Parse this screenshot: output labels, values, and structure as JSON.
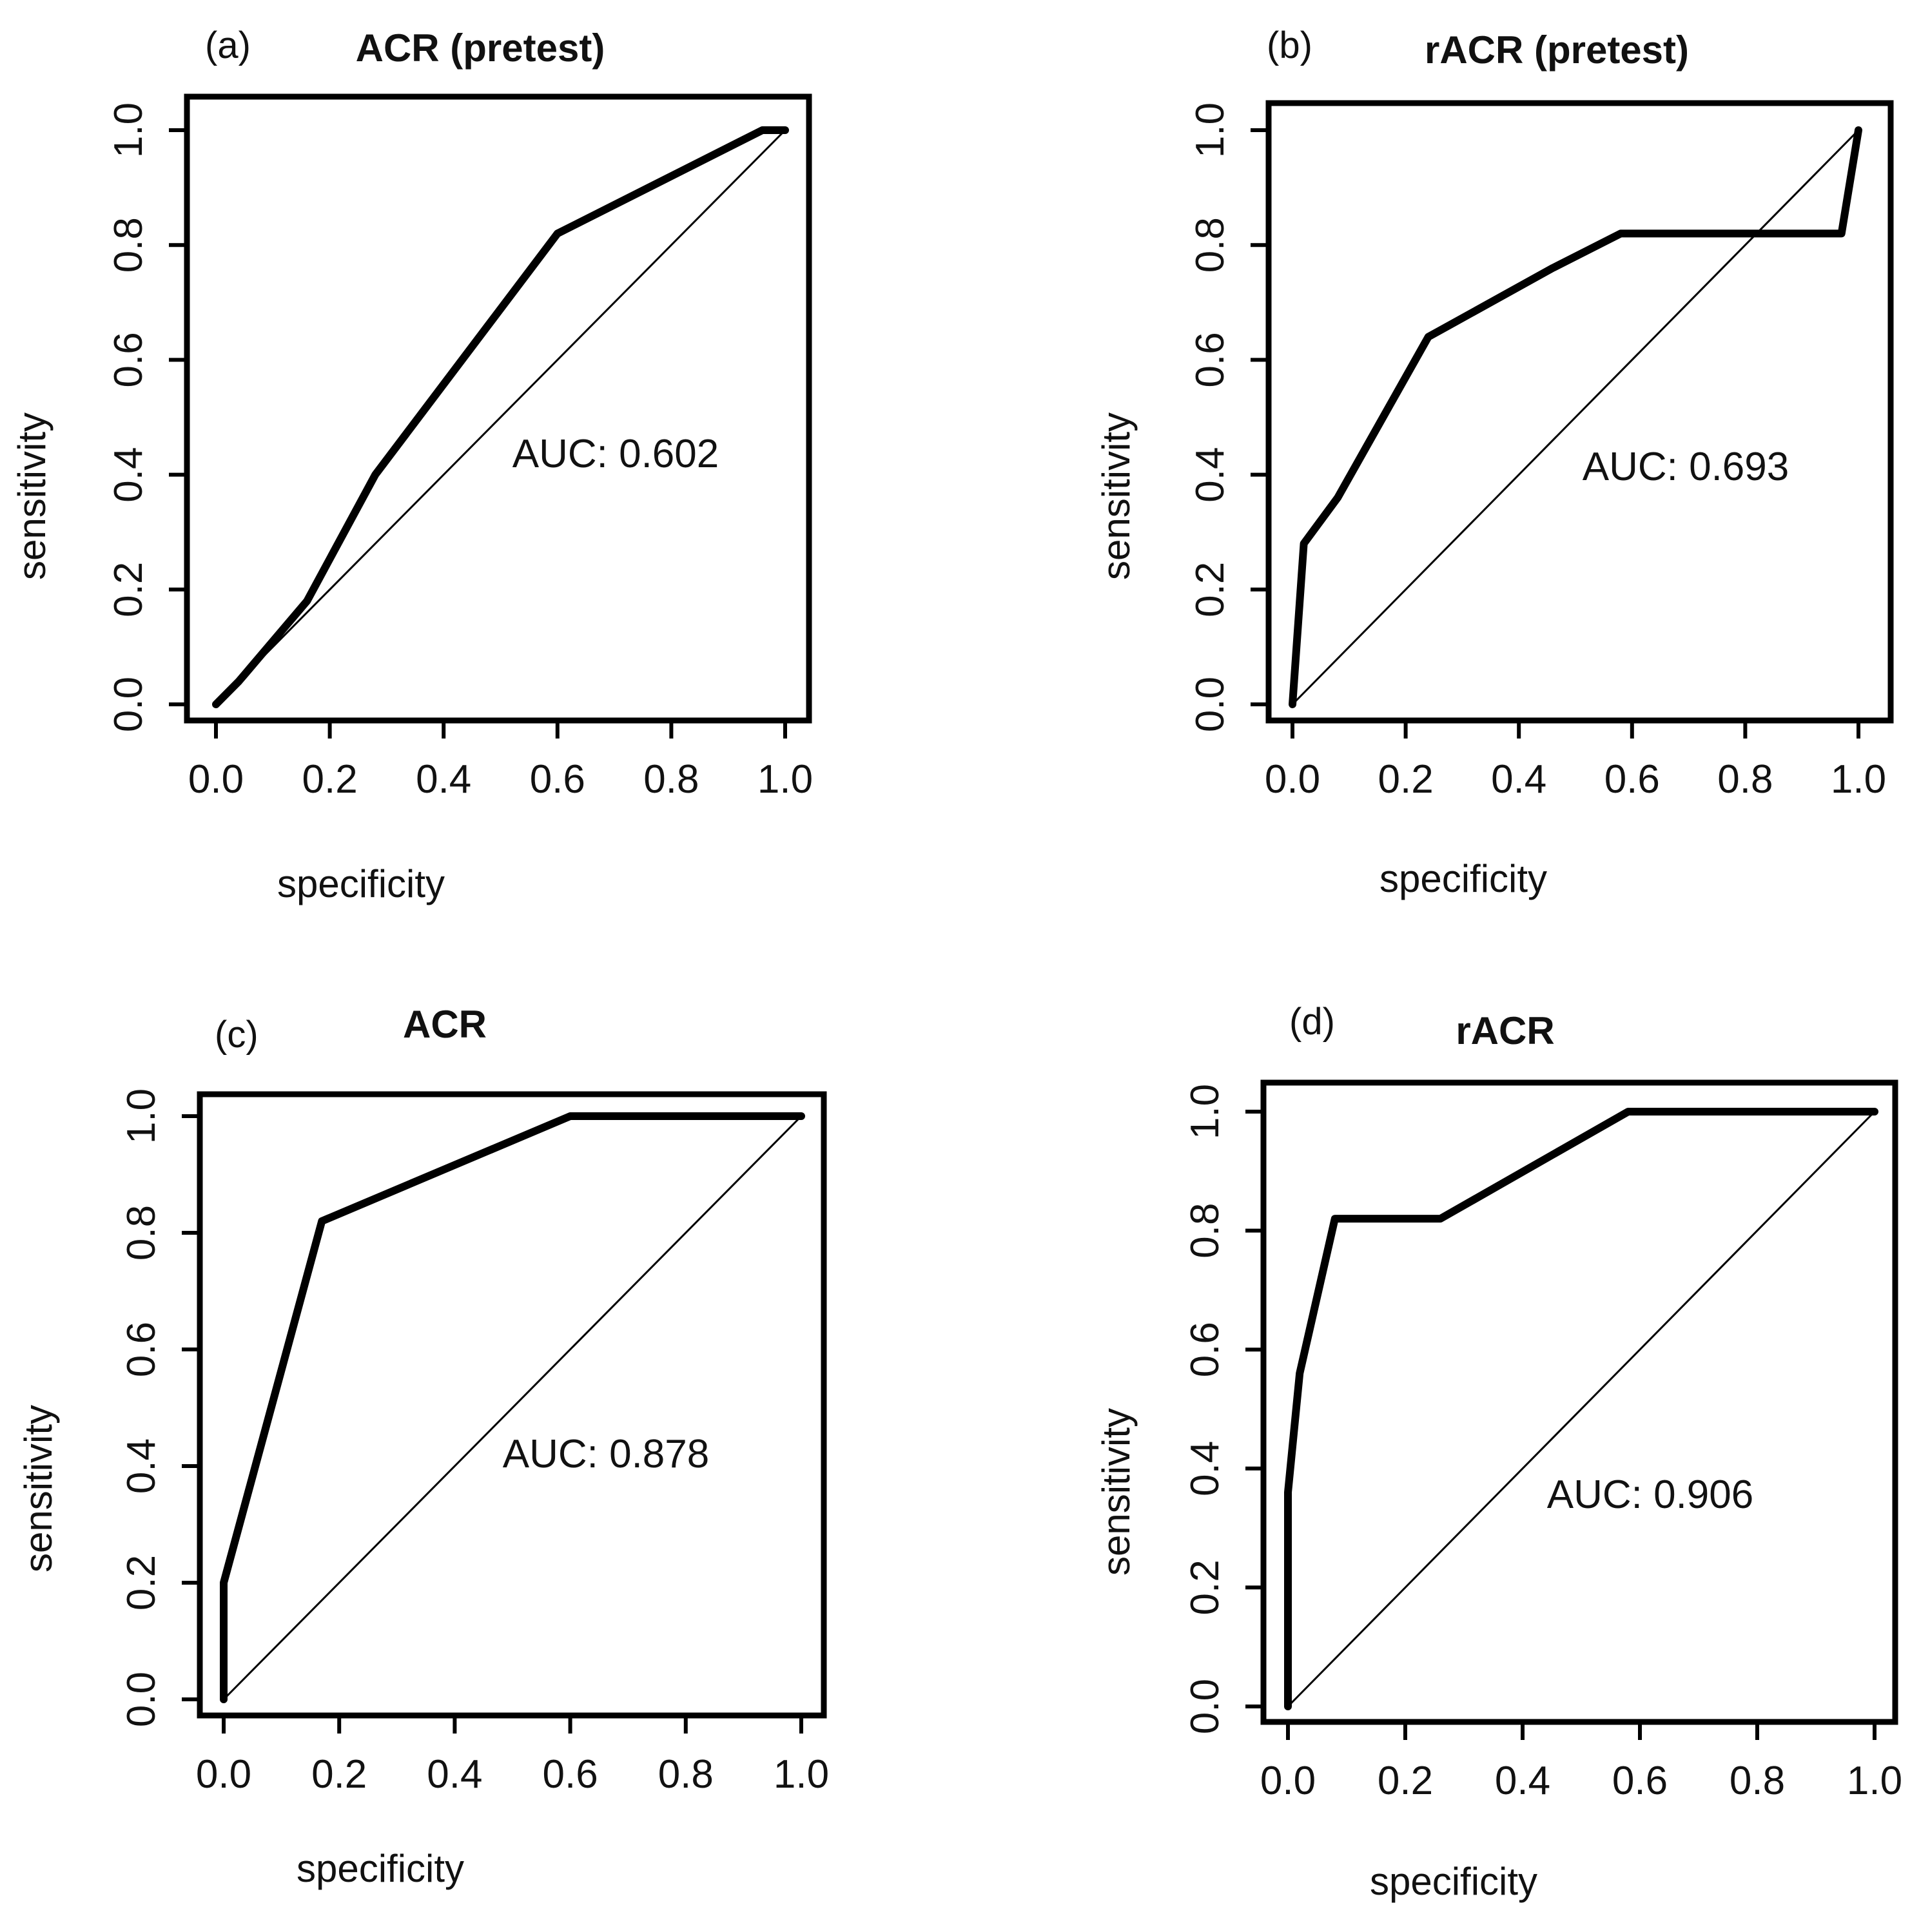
{
  "figure": {
    "xlabel": "specificity",
    "ylabel": "sensitivity",
    "ticks": [
      "0.0",
      "0.2",
      "0.4",
      "0.6",
      "0.8",
      "1.0"
    ]
  },
  "chart_data": [
    {
      "type": "line",
      "panel": "(a)",
      "title": "ACR (pretest)",
      "xlabel": "specificity",
      "ylabel": "sensitivity",
      "xlim": [
        0,
        1
      ],
      "ylim": [
        0,
        1
      ],
      "auc_label": "AUC: 0.602",
      "series": [
        {
          "name": "ROC",
          "x": [
            0.0,
            0.04,
            0.16,
            0.28,
            0.6,
            0.96,
            1.0
          ],
          "y": [
            0.0,
            0.04,
            0.18,
            0.4,
            0.82,
            1.0,
            1.0
          ]
        },
        {
          "name": "chance",
          "x": [
            0,
            1
          ],
          "y": [
            0,
            1
          ]
        }
      ]
    },
    {
      "type": "line",
      "panel": "(b)",
      "title": "rACR (pretest)",
      "xlabel": "specificity",
      "ylabel": "sensitivity",
      "xlim": [
        0,
        1
      ],
      "ylim": [
        0,
        1
      ],
      "auc_label": "AUC: 0.693",
      "series": [
        {
          "name": "ROC",
          "x": [
            0.0,
            0.02,
            0.08,
            0.24,
            0.46,
            0.58,
            0.97,
            1.0
          ],
          "y": [
            0.0,
            0.28,
            0.36,
            0.64,
            0.76,
            0.82,
            0.82,
            1.0
          ]
        },
        {
          "name": "chance",
          "x": [
            0,
            1
          ],
          "y": [
            0,
            1
          ]
        }
      ]
    },
    {
      "type": "line",
      "panel": "(c)",
      "title": "ACR",
      "xlabel": "specificity",
      "ylabel": "sensitivity",
      "xlim": [
        0,
        1
      ],
      "ylim": [
        0,
        1
      ],
      "auc_label": "AUC: 0.878",
      "series": [
        {
          "name": "ROC",
          "x": [
            0.0,
            0.0,
            0.17,
            0.6,
            1.0
          ],
          "y": [
            0.0,
            0.2,
            0.82,
            1.0,
            1.0
          ]
        },
        {
          "name": "chance",
          "x": [
            0,
            1
          ],
          "y": [
            0,
            1
          ]
        }
      ]
    },
    {
      "type": "line",
      "panel": "(d)",
      "title": "rACR",
      "xlabel": "specificity",
      "ylabel": "sensitivity",
      "xlim": [
        0,
        1
      ],
      "ylim": [
        0,
        1
      ],
      "auc_label": "AUC: 0.906",
      "series": [
        {
          "name": "ROC",
          "x": [
            0.0,
            0.0,
            0.02,
            0.08,
            0.26,
            0.58,
            1.0
          ],
          "y": [
            0.0,
            0.36,
            0.56,
            0.82,
            0.82,
            1.0,
            1.0
          ]
        },
        {
          "name": "chance",
          "x": [
            0,
            1
          ],
          "y": [
            0,
            1
          ]
        }
      ]
    }
  ]
}
